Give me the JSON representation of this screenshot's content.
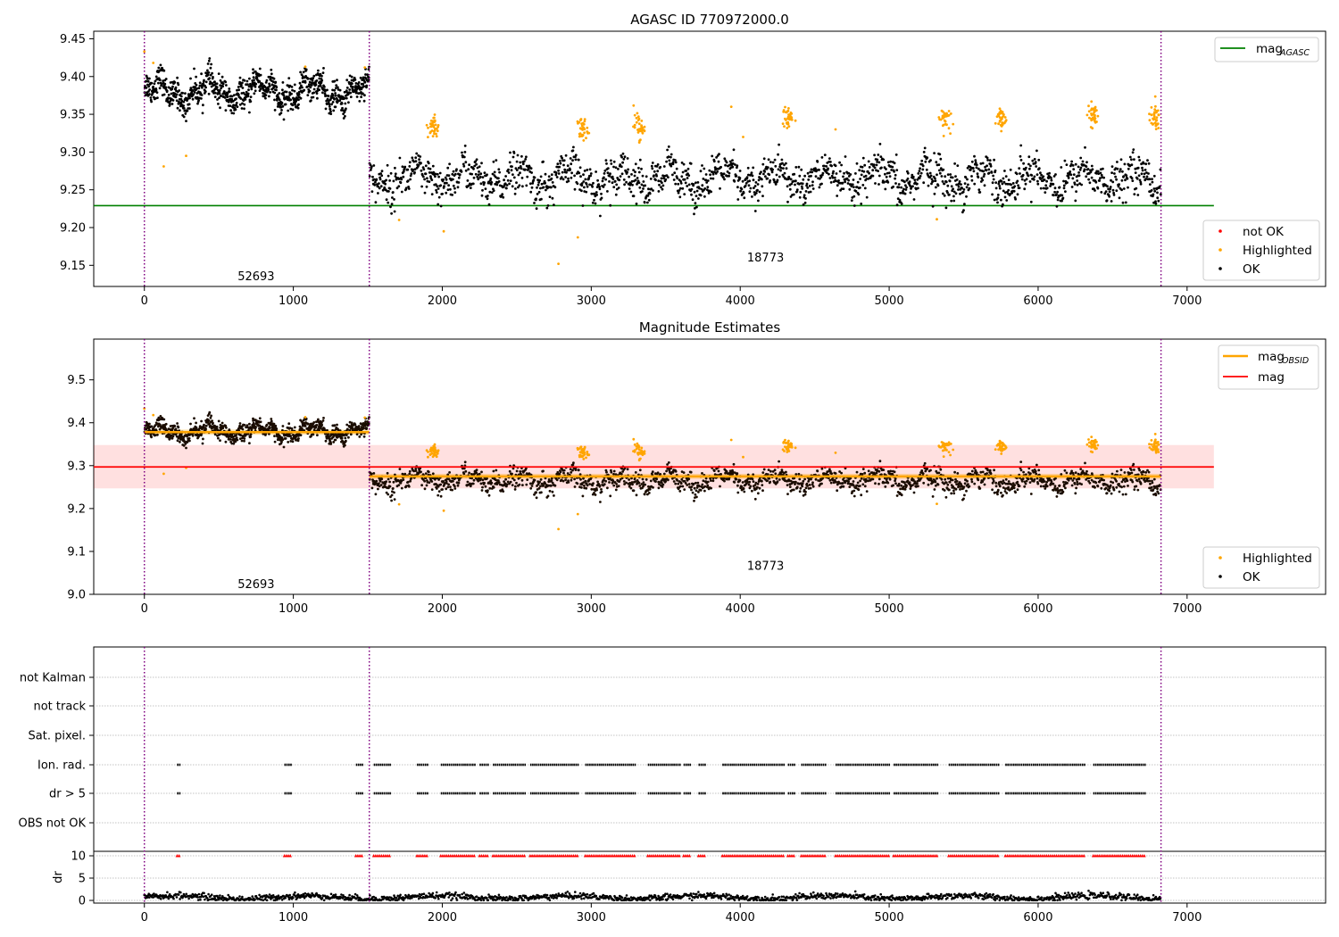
{
  "chart_data": [
    {
      "type": "scatter",
      "title": "AGASC ID 770972000.0",
      "xlim": [
        -340,
        7930
      ],
      "ylim": [
        9.122,
        9.46
      ],
      "xticks": [
        0,
        1000,
        2000,
        3000,
        4000,
        5000,
        6000,
        7000
      ],
      "xtick_labels": [
        "0",
        "1000",
        "2000",
        "3000",
        "4000",
        "5000",
        "6000",
        "7000"
      ],
      "yticks": [
        9.15,
        9.2,
        9.25,
        9.3,
        9.35,
        9.4,
        9.45
      ],
      "ytick_labels": [
        "9.15",
        "9.20",
        "9.25",
        "9.30",
        "9.35",
        "9.40",
        "9.45"
      ],
      "obs_boundaries": [
        0,
        1510,
        6825
      ],
      "obs_labels": [
        {
          "text": "52693",
          "x": 750,
          "y": 9.135
        },
        {
          "text": "18773",
          "x": 4170,
          "y": 9.16
        }
      ],
      "reference_lines": [
        {
          "name": "mag_AGASC",
          "y": 9.229,
          "x": [
            -340,
            7180
          ],
          "color": "#008000"
        }
      ],
      "segments": [
        {
          "x": [
            0,
            1510
          ],
          "base": 9.38,
          "noise": 0.009,
          "n": 900
        },
        {
          "x": [
            1510,
            6825
          ],
          "base": 9.265,
          "noise": 0.012,
          "n": 1800
        }
      ],
      "highlighted_clusters": [
        {
          "x": 1940,
          "y": 9.333
        },
        {
          "x": 2940,
          "y": 9.33
        },
        {
          "x": 3320,
          "y": 9.333
        },
        {
          "x": 4320,
          "y": 9.345
        },
        {
          "x": 5370,
          "y": 9.345
        },
        {
          "x": 5750,
          "y": 9.345
        },
        {
          "x": 6370,
          "y": 9.35
        },
        {
          "x": 6780,
          "y": 9.345
        }
      ],
      "highlighted_outliers": [
        {
          "x": 130,
          "y": 9.281
        },
        {
          "x": 280,
          "y": 9.295
        },
        {
          "x": 1710,
          "y": 9.21
        },
        {
          "x": 2010,
          "y": 9.195
        },
        {
          "x": 2780,
          "y": 9.152
        },
        {
          "x": 2910,
          "y": 9.187
        },
        {
          "x": 5320,
          "y": 9.211
        },
        {
          "x": 3940,
          "y": 9.36
        },
        {
          "x": 4020,
          "y": 9.32
        },
        {
          "x": 0,
          "y": 9.433
        },
        {
          "x": 60,
          "y": 9.418
        },
        {
          "x": 1480,
          "y": 9.412
        },
        {
          "x": 1080,
          "y": 9.413
        },
        {
          "x": 4640,
          "y": 9.33
        }
      ],
      "legend_top": {
        "position": "upper-right",
        "entries": [
          {
            "label": "mag",
            "sub": "AGASC",
            "color": "#008000"
          }
        ]
      },
      "legend_bottom": {
        "position": "lower-right",
        "entries": [
          {
            "label": "not OK",
            "color": "#ff0000"
          },
          {
            "label": "Highlighted",
            "color": "#ffa500"
          },
          {
            "label": "OK",
            "color": "#000000"
          }
        ]
      }
    },
    {
      "type": "scatter",
      "title": "Magnitude Estimates",
      "xlim": [
        -340,
        7930
      ],
      "ylim": [
        9.0,
        9.595
      ],
      "xticks": [
        0,
        1000,
        2000,
        3000,
        4000,
        5000,
        6000,
        7000
      ],
      "xtick_labels": [
        "0",
        "1000",
        "2000",
        "3000",
        "4000",
        "5000",
        "6000",
        "7000"
      ],
      "yticks": [
        9.0,
        9.1,
        9.2,
        9.3,
        9.4,
        9.5
      ],
      "ytick_labels": [
        "9.0",
        "9.1",
        "9.2",
        "9.3",
        "9.4",
        "9.5"
      ],
      "obs_boundaries": [
        0,
        1510,
        6825
      ],
      "obs_labels": [
        {
          "text": "52693",
          "x": 750,
          "y": 9.023
        },
        {
          "text": "18773",
          "x": 4170,
          "y": 9.066
        }
      ],
      "mag": {
        "value": 9.297,
        "band": [
          9.247,
          9.348
        ],
        "x": [
          -340,
          7180
        ],
        "color": "#ff0000"
      },
      "mag_obsid": [
        {
          "x": [
            0,
            1510
          ],
          "value": 9.378
        },
        {
          "x": [
            1510,
            6825
          ],
          "value": 9.275
        }
      ],
      "legend_top": {
        "position": "upper-right",
        "entries": [
          {
            "label": "mag",
            "sub": "OBSID",
            "color": "#ffa500"
          },
          {
            "label": "mag",
            "color": "#ff0000"
          }
        ]
      },
      "legend_bottom": {
        "position": "lower-right",
        "entries": [
          {
            "label": "Highlighted",
            "color": "#ffa500"
          },
          {
            "label": "OK",
            "color": "#000000"
          }
        ]
      }
    },
    {
      "type": "scatter",
      "title": "",
      "xlim": [
        -340,
        7930
      ],
      "flag_rows": [
        "not Kalman",
        "not track",
        "Sat. pixel.",
        "Ion. rad.",
        "dr > 5",
        "OBS not OK"
      ],
      "flag_intervals": [
        [
          220,
          240
        ],
        [
          940,
          980
        ],
        [
          1420,
          1470
        ],
        [
          1540,
          1650
        ],
        [
          1830,
          1900
        ],
        [
          1990,
          2220
        ],
        [
          2250,
          2310
        ],
        [
          2340,
          2560
        ],
        [
          2590,
          2910
        ],
        [
          2960,
          3300
        ],
        [
          3380,
          3600
        ],
        [
          3620,
          3660
        ],
        [
          3720,
          3760
        ],
        [
          3880,
          4290
        ],
        [
          4320,
          4370
        ],
        [
          4410,
          4570
        ],
        [
          4640,
          5000
        ],
        [
          5030,
          5330
        ],
        [
          5400,
          5730
        ],
        [
          5780,
          6320
        ],
        [
          6370,
          6720
        ]
      ],
      "dr": {
        "ylabel": "dr",
        "ylim": [
          -0.6,
          11.0
        ],
        "yticks": [
          0,
          5,
          10
        ],
        "ytick_labels": [
          "0",
          "5",
          "10"
        ],
        "threshold_marker_y": 10,
        "baseline": 0.7,
        "noise": 0.35
      },
      "xticks": [
        0,
        1000,
        2000,
        3000,
        4000,
        5000,
        6000,
        7000
      ],
      "xtick_labels": [
        "0",
        "1000",
        "2000",
        "3000",
        "4000",
        "5000",
        "6000",
        "7000"
      ]
    }
  ]
}
